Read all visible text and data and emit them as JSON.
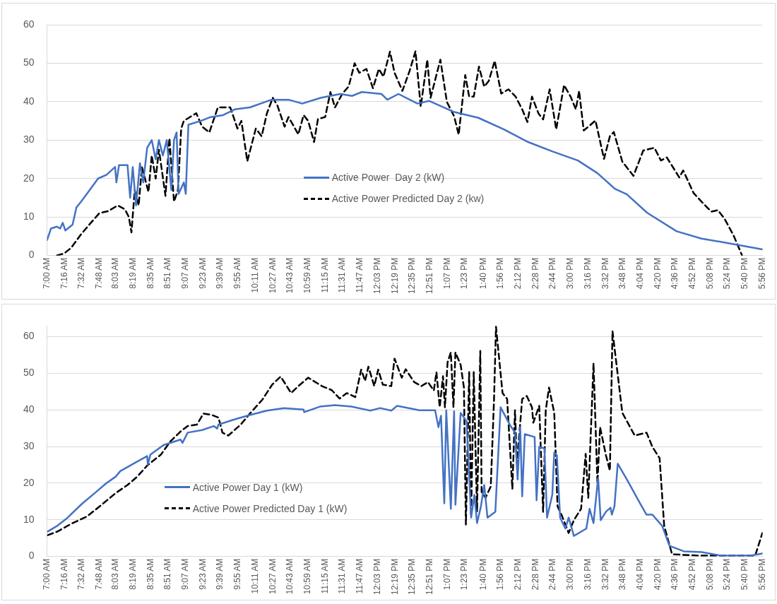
{
  "chart_data": [
    {
      "type": "line",
      "xlim": [
        7,
        17.9333
      ],
      "ylim": [
        0,
        60
      ],
      "yticks": [
        0,
        10,
        20,
        30,
        40,
        50,
        60
      ],
      "grid": "y",
      "legend": "center",
      "marker": "none",
      "xticks": [
        {
          "value": 7,
          "label": "7:00 AM"
        },
        {
          "value": 7.2667,
          "label": "7:16 AM"
        },
        {
          "value": 7.5333,
          "label": "7:32 AM"
        },
        {
          "value": 7.8,
          "label": "7:48 AM"
        },
        {
          "value": 8.05,
          "label": "8:03 AM"
        },
        {
          "value": 8.3167,
          "label": "8:19 AM"
        },
        {
          "value": 8.5833,
          "label": "8:35 AM"
        },
        {
          "value": 8.85,
          "label": "8:51 AM"
        },
        {
          "value": 9.1167,
          "label": "9:07 AM"
        },
        {
          "value": 9.3833,
          "label": "9:23 AM"
        },
        {
          "value": 9.65,
          "label": "9:39 AM"
        },
        {
          "value": 9.9167,
          "label": "9:55 AM"
        },
        {
          "value": 10.1833,
          "label": "10:11 AM"
        },
        {
          "value": 10.45,
          "label": "10:27 AM"
        },
        {
          "value": 10.7167,
          "label": "10:43 AM"
        },
        {
          "value": 10.9833,
          "label": "10:59 AM"
        },
        {
          "value": 11.25,
          "label": "11:15 AM"
        },
        {
          "value": 11.5167,
          "label": "11:31 AM"
        },
        {
          "value": 11.7833,
          "label": "11:47 AM"
        },
        {
          "value": 12.05,
          "label": "12:03 PM"
        },
        {
          "value": 12.3167,
          "label": "12:19 PM"
        },
        {
          "value": 12.5833,
          "label": "12:35 PM"
        },
        {
          "value": 12.85,
          "label": "12:51 PM"
        },
        {
          "value": 13.1167,
          "label": "1:07 PM"
        },
        {
          "value": 13.3833,
          "label": "1:23 PM"
        },
        {
          "value": 13.6667,
          "label": "1:40 PM"
        },
        {
          "value": 13.9333,
          "label": "1:56 PM"
        },
        {
          "value": 14.2,
          "label": "2:12 PM"
        },
        {
          "value": 14.4667,
          "label": "2:28 PM"
        },
        {
          "value": 14.7333,
          "label": "2:44 PM"
        },
        {
          "value": 15,
          "label": "3:00 PM"
        },
        {
          "value": 15.2667,
          "label": "3:16 PM"
        },
        {
          "value": 15.5333,
          "label": "3:32 PM"
        },
        {
          "value": 15.8,
          "label": "3:48 PM"
        },
        {
          "value": 16.0667,
          "label": "4:04 PM"
        },
        {
          "value": 16.3333,
          "label": "4:20 PM"
        },
        {
          "value": 16.6,
          "label": "4:36 PM"
        },
        {
          "value": 16.8667,
          "label": "4:52 PM"
        },
        {
          "value": 17.1333,
          "label": "5:08 PM"
        },
        {
          "value": 17.4,
          "label": "5:24 PM"
        },
        {
          "value": 17.6667,
          "label": "5:40 PM"
        },
        {
          "value": 17.9333,
          "label": "5:56 PM"
        }
      ],
      "series": [
        {
          "name": "Active Power  Day 2 (kW)",
          "color": "#4472c4",
          "line_style": "solid",
          "x": [
            7,
            7.06,
            7.15,
            7.2,
            7.24,
            7.28,
            7.39,
            7.45,
            7.52,
            7.63,
            7.78,
            7.91,
            8.04,
            8.06,
            8.1,
            8.23,
            8.27,
            8.31,
            8.36,
            8.42,
            8.47,
            8.53,
            8.6,
            8.66,
            8.71,
            8.77,
            8.83,
            8.9,
            8.94,
            8.98,
            9.01,
            9.09,
            9.12,
            9.16,
            9.35,
            9.5,
            9.69,
            9.87,
            10.1,
            10.43,
            10.69,
            10.9,
            11.18,
            11.48,
            11.66,
            11.81,
            12.11,
            12.2,
            12.37,
            12.66,
            12.84,
            13.22,
            13.59,
            13.98,
            14.35,
            14.73,
            15.11,
            15.41,
            15.68,
            15.86,
            16.17,
            16.62,
            17,
            17.38,
            17.93
          ],
          "values": [
            4,
            7,
            7.5,
            7,
            8.5,
            6.5,
            8,
            12.5,
            14,
            16.5,
            20,
            21,
            23,
            19,
            23.5,
            23.5,
            15,
            23,
            13,
            24,
            19,
            28,
            30,
            25,
            30,
            26,
            30,
            17,
            30,
            32,
            16,
            19,
            16,
            34,
            35,
            36,
            36.5,
            38,
            38.5,
            40.5,
            40.5,
            39.5,
            41,
            42,
            41.5,
            42.5,
            42,
            40.5,
            42,
            39.5,
            40.2,
            37.3,
            35.8,
            32.8,
            29.5,
            27,
            24.7,
            21.4,
            17.3,
            15.9,
            11.1,
            6.3,
            4.4,
            3.3,
            1.6
          ]
        },
        {
          "name": "Active Power Predicted Day 2 (kw)",
          "color": "#000000",
          "line_style": "dashed",
          "x": [
            7.15,
            7.26,
            7.37,
            7.52,
            7.67,
            7.8,
            7.93,
            8.08,
            8.19,
            8.25,
            8.29,
            8.34,
            8.4,
            8.45,
            8.55,
            8.6,
            8.66,
            8.71,
            8.81,
            8.87,
            8.94,
            9,
            9.05,
            9.09,
            9.28,
            9.37,
            9.48,
            9.61,
            9.8,
            9.91,
            9.97,
            10.06,
            10.19,
            10.28,
            10.36,
            10.45,
            10.52,
            10.63,
            10.69,
            10.84,
            10.92,
            10.99,
            11.08,
            11.14,
            11.25,
            11.33,
            11.4,
            11.51,
            11.61,
            11.7,
            11.77,
            11.88,
            11.98,
            12.07,
            12.14,
            12.24,
            12.31,
            12.43,
            12.54,
            12.63,
            12.71,
            12.81,
            12.86,
            13.01,
            13.11,
            13.22,
            13.29,
            13.39,
            13.45,
            13.52,
            13.6,
            13.68,
            13.75,
            13.84,
            13.94,
            14.05,
            14.16,
            14.26,
            14.34,
            14.41,
            14.51,
            14.58,
            14.68,
            14.78,
            14.9,
            15,
            15.08,
            15.13,
            15.2,
            15.3,
            15.38,
            15.51,
            15.6,
            15.66,
            15.79,
            15.96,
            16.11,
            16.28,
            16.38,
            16.47,
            16.66,
            16.72,
            16.88,
            17,
            17.15,
            17.25,
            17.35,
            17.49,
            17.62
          ],
          "values": [
            0,
            0.5,
            2,
            5.5,
            8.5,
            11,
            11.5,
            13,
            12,
            10,
            6,
            17,
            13,
            23,
            16.5,
            26,
            20,
            27.5,
            15.5,
            30.5,
            14,
            17,
            33,
            35,
            37,
            33.5,
            32,
            38.5,
            38.5,
            33,
            35,
            24.5,
            33,
            31,
            37,
            41,
            39,
            33.5,
            36,
            31.5,
            36.5,
            35,
            29.5,
            35.5,
            36,
            42.5,
            38.5,
            42,
            44,
            50,
            47.5,
            48.5,
            43.5,
            48.5,
            46.5,
            53,
            47.5,
            42.8,
            48,
            53.1,
            38.7,
            50.9,
            41,
            50.9,
            39.9,
            36.2,
            31.4,
            46.9,
            41.3,
            41.3,
            49.1,
            43.9,
            45.4,
            50.6,
            42.1,
            43.2,
            41.3,
            38,
            34.7,
            41.3,
            36.9,
            35.4,
            43.2,
            32.8,
            44.3,
            41.3,
            38,
            42.8,
            32.5,
            33.9,
            35.1,
            25.1,
            31,
            32.1,
            24.4,
            20.7,
            27.3,
            28,
            24.7,
            25.5,
            20.3,
            22.1,
            16.2,
            14,
            11.4,
            11.8,
            9.6,
            5.2,
            0
          ]
        }
      ]
    },
    {
      "type": "line",
      "xlim": [
        7,
        17.9333
      ],
      "ylim": [
        0,
        63
      ],
      "yticks": [
        0,
        10,
        20,
        30,
        40,
        50,
        60
      ],
      "grid": "y",
      "legend": "bottom left",
      "marker": "none",
      "xticks": [
        {
          "value": 7,
          "label": "7:00 AM"
        },
        {
          "value": 7.2667,
          "label": "7:16 AM"
        },
        {
          "value": 7.5333,
          "label": "7:32 AM"
        },
        {
          "value": 7.8,
          "label": "7:48 AM"
        },
        {
          "value": 8.05,
          "label": "8:03 AM"
        },
        {
          "value": 8.3167,
          "label": "8:19 AM"
        },
        {
          "value": 8.5833,
          "label": "8:35 AM"
        },
        {
          "value": 8.85,
          "label": "8:51 AM"
        },
        {
          "value": 9.1167,
          "label": "9:07 AM"
        },
        {
          "value": 9.3833,
          "label": "9:23 AM"
        },
        {
          "value": 9.65,
          "label": "9:39 AM"
        },
        {
          "value": 9.9167,
          "label": "9:55 AM"
        },
        {
          "value": 10.1833,
          "label": "10:11 AM"
        },
        {
          "value": 10.45,
          "label": "10:27 AM"
        },
        {
          "value": 10.7167,
          "label": "10:43 AM"
        },
        {
          "value": 10.9833,
          "label": "10:59 AM"
        },
        {
          "value": 11.25,
          "label": "11:15 AM"
        },
        {
          "value": 11.5167,
          "label": "11:31 AM"
        },
        {
          "value": 11.7833,
          "label": "11:47 AM"
        },
        {
          "value": 12.05,
          "label": "12:03 PM"
        },
        {
          "value": 12.3167,
          "label": "12:19 PM"
        },
        {
          "value": 12.5833,
          "label": "12:35 PM"
        },
        {
          "value": 12.85,
          "label": "12:51 PM"
        },
        {
          "value": 13.1167,
          "label": "1:07 PM"
        },
        {
          "value": 13.3833,
          "label": "1:23 PM"
        },
        {
          "value": 13.6667,
          "label": "1:40 PM"
        },
        {
          "value": 13.9333,
          "label": "1:56 PM"
        },
        {
          "value": 14.2,
          "label": "2:12 PM"
        },
        {
          "value": 14.4667,
          "label": "2:28 PM"
        },
        {
          "value": 14.7333,
          "label": "2:44 PM"
        },
        {
          "value": 15,
          "label": "3:00 PM"
        },
        {
          "value": 15.2667,
          "label": "3:16 PM"
        },
        {
          "value": 15.5333,
          "label": "3:32 PM"
        },
        {
          "value": 15.8,
          "label": "3:48 PM"
        },
        {
          "value": 16.0667,
          "label": "4:04 PM"
        },
        {
          "value": 16.3333,
          "label": "4:20 PM"
        },
        {
          "value": 16.6,
          "label": "4:36 PM"
        },
        {
          "value": 16.8667,
          "label": "4:52 PM"
        },
        {
          "value": 17.1333,
          "label": "5:08 PM"
        },
        {
          "value": 17.4,
          "label": "5:24 PM"
        },
        {
          "value": 17.6667,
          "label": "5:40 PM"
        },
        {
          "value": 17.9333,
          "label": "5:56 PM"
        }
      ],
      "series": [
        {
          "name": "Active Power Day 1 (kW)",
          "color": "#4472c4",
          "line_style": "solid",
          "x": [
            7.01,
            7.16,
            7.31,
            7.53,
            7.75,
            7.9,
            8.05,
            8.12,
            8.34,
            8.53,
            8.54,
            8.58,
            8.78,
            9.04,
            9.07,
            9.15,
            9.37,
            9.55,
            9.6,
            9.62,
            9.88,
            10.1,
            10.36,
            10.62,
            10.92,
            10.93,
            11.17,
            11.4,
            11.65,
            11.94,
            12.09,
            12.26,
            12.35,
            12.69,
            12.93,
            12.98,
            13.02,
            13.07,
            13.1,
            13.17,
            13.22,
            13.24,
            13.32,
            13.41,
            13.48,
            13.53,
            13.57,
            13.63,
            13.68,
            13.73,
            13.85,
            13.93,
            14.08,
            14.15,
            14.19,
            14.23,
            14.26,
            14.3,
            14.45,
            14.48,
            14.52,
            14.6,
            14.64,
            14.72,
            14.75,
            14.79,
            14.84,
            14.92,
            14.97,
            15.05,
            15.24,
            15.29,
            15.35,
            15.42,
            15.46,
            15.54,
            15.61,
            15.63,
            15.67,
            15.72,
            15.87,
            16.06,
            16.16,
            16.25,
            16.4,
            16.51,
            16.73,
            17,
            17.3,
            17.75,
            17.93
          ],
          "values": [
            6.8,
            8.4,
            10.5,
            14.3,
            17.6,
            19.9,
            21.8,
            23.3,
            25.5,
            27.4,
            25,
            27.8,
            30.4,
            31.9,
            31,
            33.8,
            34.5,
            35.6,
            34.9,
            36,
            37.5,
            38.6,
            39.8,
            40.5,
            40.1,
            39.4,
            40.9,
            41.3,
            40.9,
            39.8,
            40.5,
            39.8,
            41.1,
            39.9,
            39.9,
            35.3,
            38.4,
            14.5,
            39.9,
            13,
            39.6,
            14.1,
            39.2,
            36.9,
            10.6,
            16.8,
            9.1,
            13.7,
            19.5,
            10.6,
            12.2,
            40.7,
            35.7,
            33.8,
            21,
            35.3,
            16.4,
            33.4,
            32.6,
            15.3,
            29.9,
            29.5,
            10.6,
            16.8,
            28.4,
            27.6,
            10.6,
            7.6,
            10.6,
            5.6,
            7.6,
            13,
            9.1,
            21.4,
            9.9,
            12.2,
            13.3,
            11.4,
            13.7,
            25.3,
            20.7,
            14.5,
            11.4,
            11.4,
            8.3,
            2.9,
            1.4,
            1.2,
            0.2,
            0.2,
            0.8
          ]
        },
        {
          "name": "Active Power Predicted Day 1 (kW)",
          "color": "#000000",
          "line_style": "dashed",
          "x": [
            7.01,
            7.16,
            7.38,
            7.61,
            7.82,
            8.05,
            8.23,
            8.38,
            8.53,
            8.74,
            8.89,
            9.04,
            9.15,
            9.29,
            9.39,
            9.52,
            9.62,
            9.68,
            9.77,
            9.96,
            10.1,
            10.29,
            10.44,
            10.57,
            10.73,
            10.84,
            10.99,
            11.2,
            11.35,
            11.47,
            11.58,
            11.71,
            11.8,
            11.86,
            11.91,
            12,
            12.06,
            12.13,
            12.26,
            12.31,
            12.42,
            12.48,
            12.61,
            12.72,
            12.82,
            12.91,
            12.95,
            13,
            13.05,
            13.08,
            13.12,
            13.17,
            13.21,
            13.24,
            13.32,
            13.37,
            13.4,
            13.45,
            13.48,
            13.52,
            13.57,
            13.62,
            13.64,
            13.7,
            13.78,
            13.83,
            13.86,
            13.96,
            14.03,
            14.11,
            14.15,
            14.18,
            14.26,
            14.33,
            14.41,
            14.43,
            14.52,
            14.58,
            14.62,
            14.67,
            14.75,
            14.8,
            14.86,
            14.97,
            15.05,
            15.16,
            15.23,
            15.27,
            15.35,
            15.41,
            15.45,
            15.54,
            15.6,
            15.64,
            15.79,
            15.98,
            16.16,
            16.25,
            16.36,
            16.43,
            16.55,
            16.96,
            17.82,
            17.93
          ],
          "values": [
            5.8,
            6.8,
            9,
            10.9,
            13.9,
            17.3,
            19.5,
            21.8,
            24.8,
            27.8,
            31.5,
            34.1,
            35.6,
            36,
            39,
            38.6,
            37.9,
            33.8,
            33,
            36,
            39,
            42.8,
            46.9,
            49.1,
            44.6,
            46.5,
            48.8,
            46.5,
            45.4,
            43.1,
            44.6,
            43.5,
            51,
            47.9,
            51.8,
            46.5,
            51,
            46.9,
            46.5,
            54,
            48.8,
            51.1,
            47.6,
            46.5,
            47.6,
            45.3,
            50.3,
            40.7,
            49.2,
            40.7,
            53,
            55.7,
            40.7,
            55.7,
            52.3,
            46.1,
            8.7,
            50.3,
            11,
            50.3,
            12.2,
            56.1,
            17.6,
            16,
            19.1,
            43,
            62.7,
            44.6,
            43,
            18.4,
            39.9,
            25.3,
            43,
            43.8,
            40.7,
            36.5,
            41.1,
            12.2,
            39.9,
            46.1,
            39.2,
            13.7,
            11.4,
            6.4,
            9.9,
            13,
            28,
            16,
            52.7,
            19.9,
            35.3,
            27.6,
            23.4,
            61.5,
            39.2,
            33,
            33.8,
            29.9,
            26.8,
            8.3,
            0.6,
            0.2,
            0.2,
            6.4
          ]
        }
      ]
    }
  ]
}
